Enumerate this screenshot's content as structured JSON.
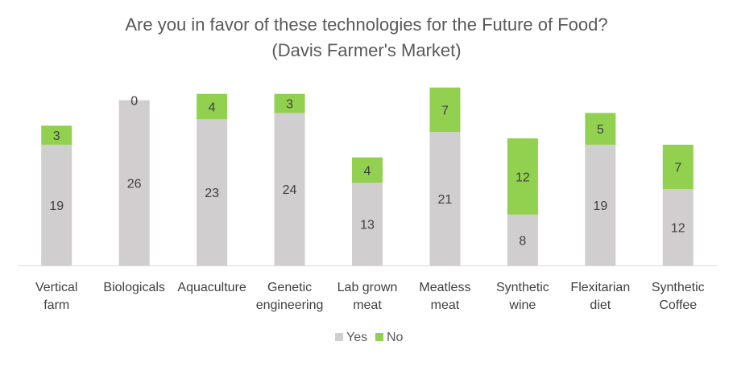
{
  "chart_data": {
    "type": "bar",
    "stacked": true,
    "title": [
      "Are you in favor of these technologies for the Future of Food?",
      "(Davis Farmer's Market)"
    ],
    "categories": [
      [
        "Vertical",
        "farm"
      ],
      [
        "Biologicals"
      ],
      [
        "Aquaculture"
      ],
      [
        "Genetic",
        "engineering"
      ],
      [
        "Lab grown",
        "meat"
      ],
      [
        "Meatless",
        "meat"
      ],
      [
        "Synthetic",
        "wine"
      ],
      [
        "Flexitarian",
        "diet"
      ],
      [
        "Synthetic",
        "Coffee"
      ]
    ],
    "series": [
      {
        "name": "Yes",
        "color": "#d0cece",
        "values": [
          19,
          26,
          23,
          24,
          13,
          21,
          8,
          19,
          12
        ]
      },
      {
        "name": "No",
        "color": "#92d050",
        "values": [
          3,
          0,
          4,
          3,
          4,
          7,
          12,
          5,
          7
        ]
      }
    ],
    "ylim": [
      0,
      30
    ],
    "grid": false,
    "legend": "bottom",
    "axis_color": "#d9d9d9"
  }
}
